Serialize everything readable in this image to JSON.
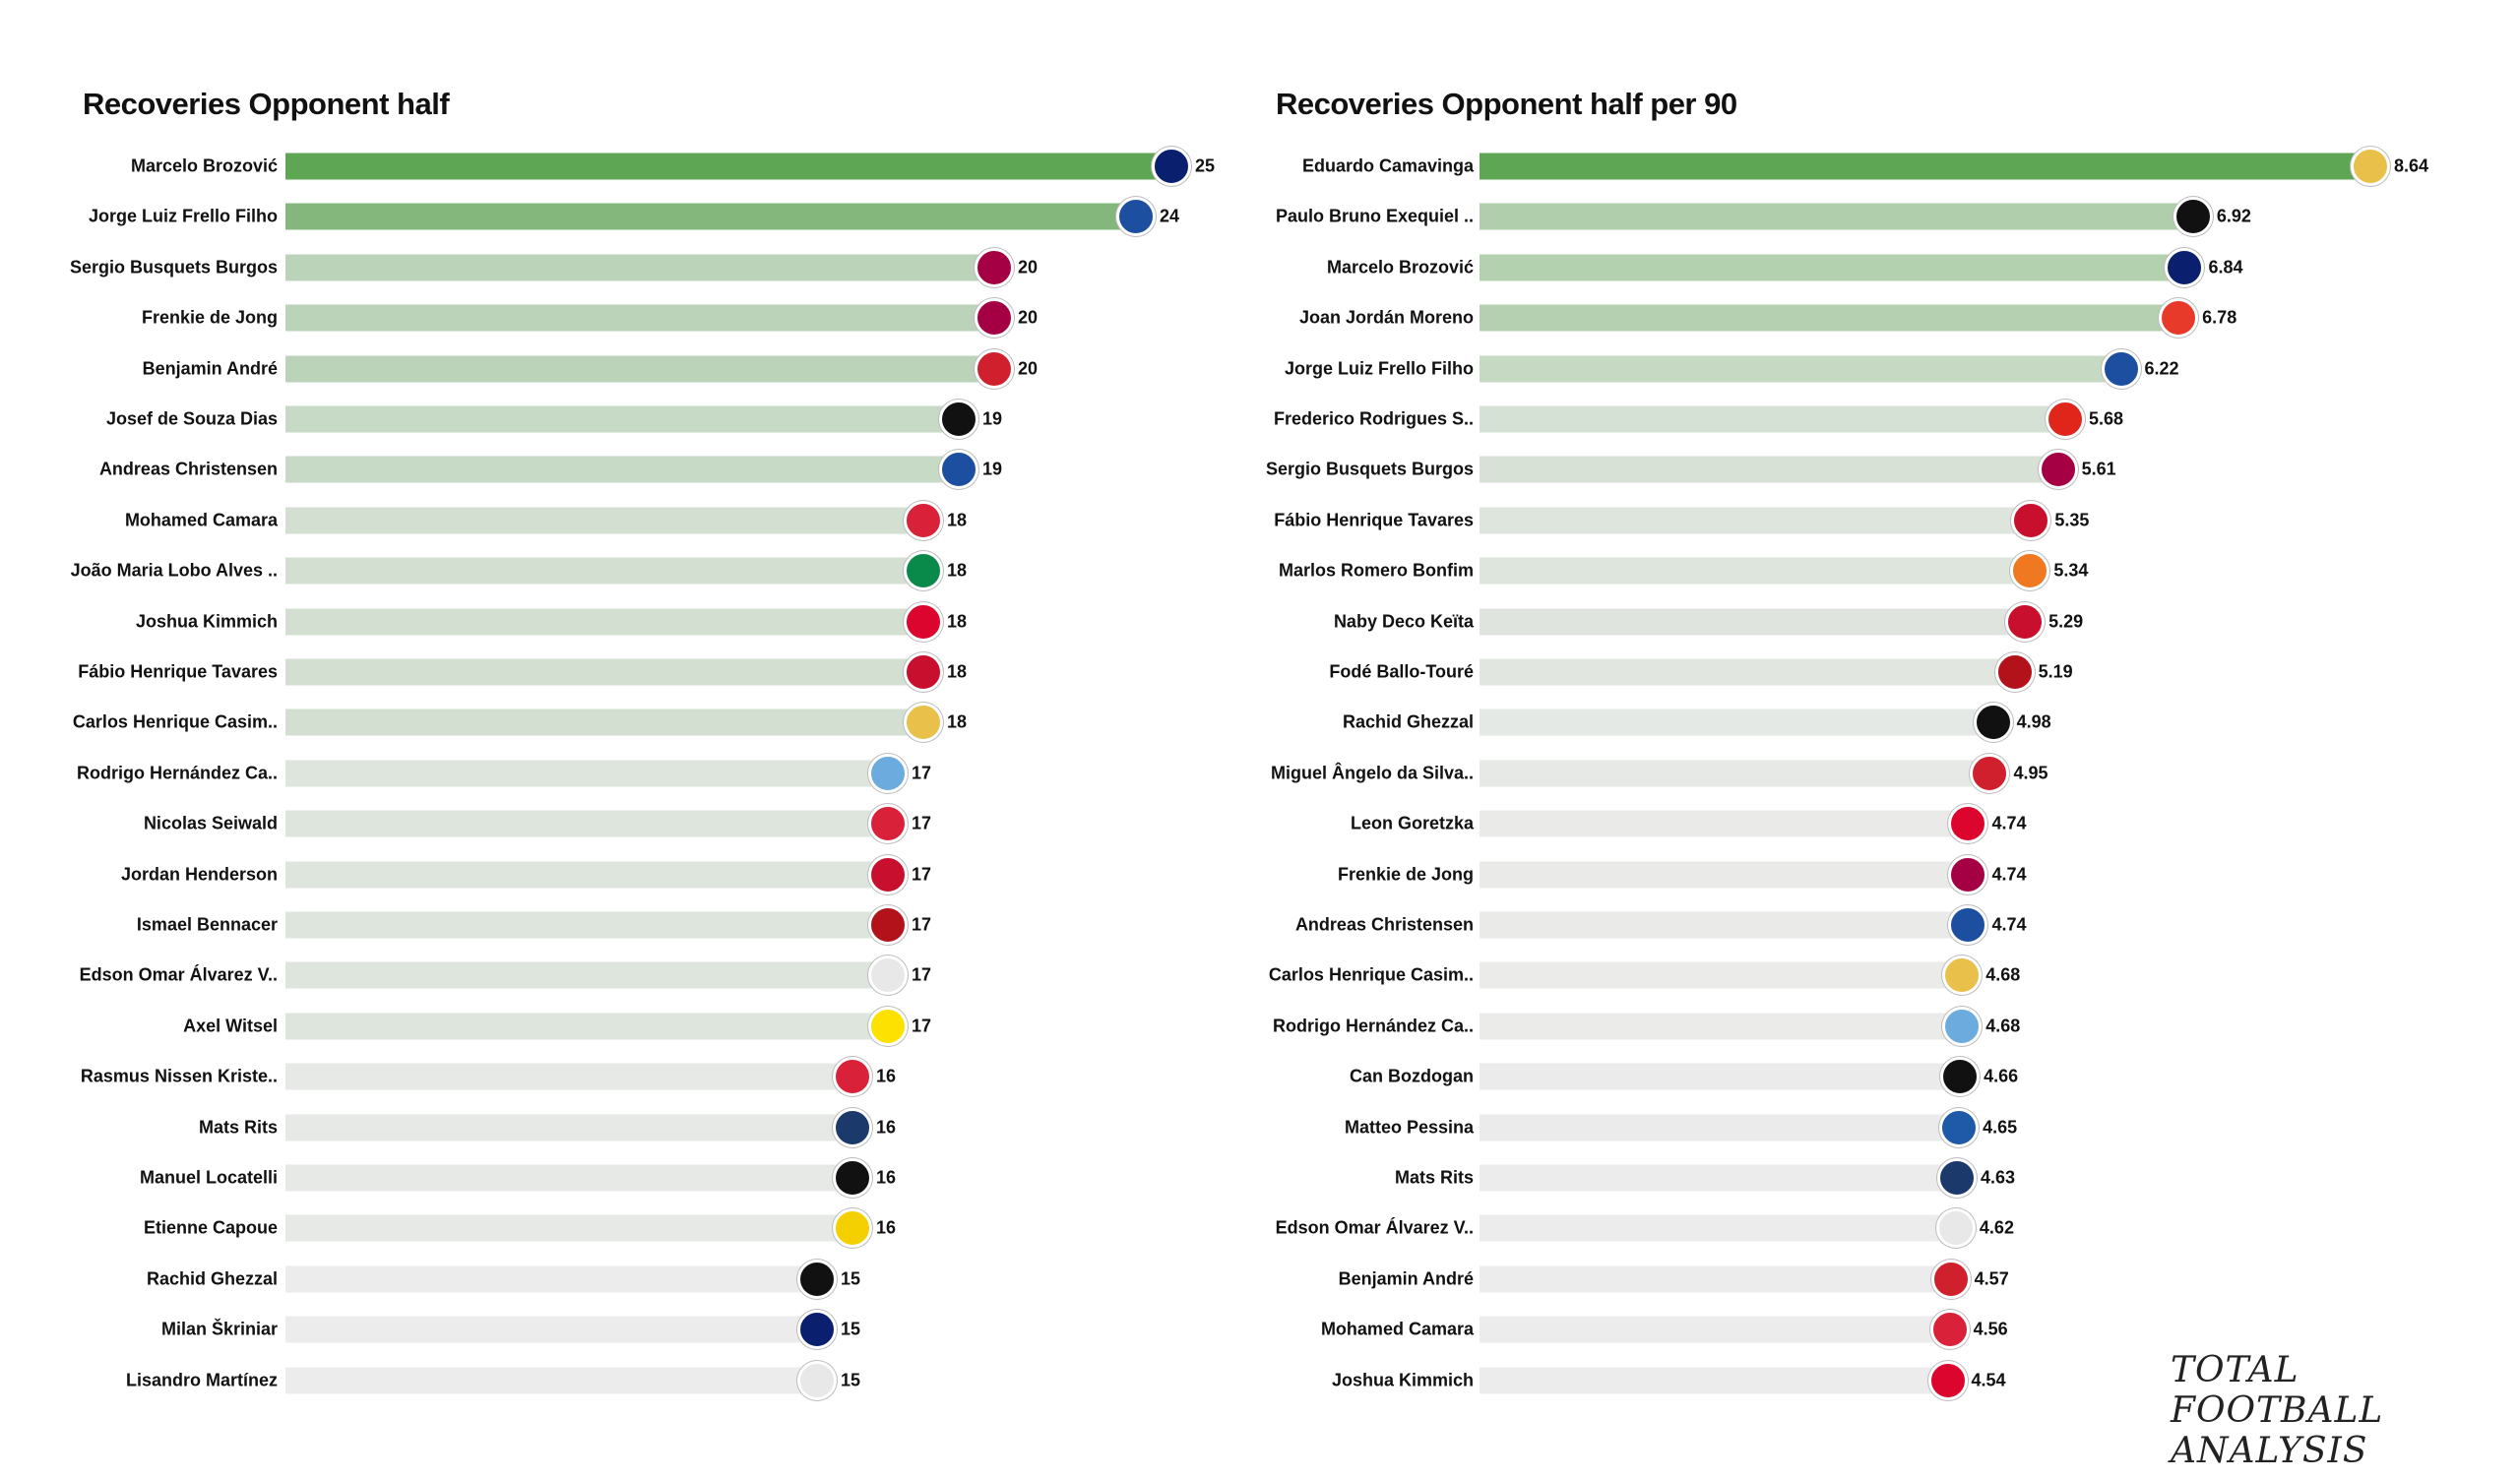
{
  "watermark": "Total Football Analysis",
  "colors": {
    "bar_max": "#5ea554",
    "bar_min": "#ececec"
  },
  "chart_data": [
    {
      "type": "bar",
      "orientation": "horizontal",
      "title": "Recoveries Opponent half",
      "xlim": [
        0,
        25
      ],
      "grid": false,
      "categories": [
        "Marcelo Brozović",
        "Jorge Luiz Frello Filho",
        "Sergio Busquets Burgos",
        "Frenkie de Jong",
        "Benjamin André",
        "Josef de Souza Dias",
        "Andreas Christensen",
        "Mohamed Camara",
        "João Maria Lobo Alves ..",
        "Joshua Kimmich",
        "Fábio Henrique Tavares",
        "Carlos Henrique Casim..",
        "Rodrigo Hernández Ca..",
        "Nicolas Seiwald",
        "Jordan Henderson",
        "Ismael Bennacer",
        "Edson Omar Álvarez V..",
        "Axel  Witsel",
        "Rasmus Nissen Kriste..",
        "Mats Rits",
        "Manuel Locatelli",
        "Etienne Capoue",
        "Rachid Ghezzal",
        "Milan Škriniar",
        "Lisandro Martínez"
      ],
      "values": [
        25,
        24,
        20,
        20,
        20,
        19,
        19,
        18,
        18,
        18,
        18,
        18,
        17,
        17,
        17,
        17,
        17,
        17,
        16,
        16,
        16,
        16,
        15,
        15,
        15
      ],
      "badges": [
        "inter",
        "chelsea",
        "barcelona",
        "barcelona",
        "lille",
        "besiktas",
        "chelsea",
        "salzburg",
        "sporting",
        "bayern",
        "liverpool",
        "real-madrid",
        "man-city",
        "salzburg",
        "liverpool",
        "milan",
        "ajax",
        "dortmund",
        "salzburg",
        "club-brugge",
        "juventus",
        "villarreal",
        "besiktas",
        "inter",
        "ajax"
      ]
    },
    {
      "type": "bar",
      "orientation": "horizontal",
      "title": "Recoveries Opponent half per 90",
      "xlim": [
        0,
        8.64
      ],
      "grid": false,
      "categories": [
        "Eduardo Camavinga",
        "Paulo Bruno Exequiel ..",
        "Marcelo Brozović",
        "Joan Jordán Moreno",
        "Jorge Luiz Frello Filho",
        "Frederico Rodrigues S..",
        "Sergio Busquets Burgos",
        "Fábio Henrique Tavares",
        "Marlos Romero Bonfim",
        "Naby Deco Keïta",
        "Fodé  Ballo-Touré",
        "Rachid Ghezzal",
        "Miguel Ângelo da Silva..",
        "Leon  Goretzka",
        "Frenkie de Jong",
        "Andreas Christensen",
        "Carlos Henrique Casim..",
        "Rodrigo Hernández Ca..",
        "Can Bozdogan",
        "Matteo Pessina",
        "Mats Rits",
        "Edson Omar Álvarez V..",
        "Benjamin André",
        "Mohamed Camara",
        "Joshua Kimmich"
      ],
      "values": [
        8.64,
        6.92,
        6.84,
        6.78,
        6.22,
        5.68,
        5.61,
        5.35,
        5.34,
        5.29,
        5.19,
        4.98,
        4.95,
        4.74,
        4.74,
        4.74,
        4.68,
        4.68,
        4.66,
        4.65,
        4.63,
        4.62,
        4.57,
        4.56,
        4.54
      ],
      "value_labels": [
        "8.64",
        "6.92",
        "6.84",
        "6.78",
        "6.22",
        "5.68",
        "5.61",
        "5.35",
        "5.34",
        "5.29",
        "5.19",
        "4.98",
        "4.95",
        "4.74",
        "4.74",
        "4.74",
        "4.68",
        "4.68",
        "4.66",
        "4.65",
        "4.63",
        "4.62",
        "4.57",
        "4.56",
        "4.54"
      ],
      "badges": [
        "real-madrid",
        "juventus",
        "inter",
        "sevilla",
        "chelsea",
        "man-utd",
        "barcelona",
        "liverpool",
        "shakhtar",
        "liverpool",
        "milan",
        "besiktas",
        "lille",
        "bayern",
        "barcelona",
        "chelsea",
        "real-madrid",
        "man-city",
        "besiktas",
        "atalanta",
        "club-brugge",
        "ajax",
        "lille",
        "salzburg",
        "bayern"
      ]
    }
  ],
  "badge_colors": {
    "inter": "#0a1f6e",
    "chelsea": "#1d4fa0",
    "barcelona": "#a50044",
    "lille": "#d0202e",
    "besiktas": "#111111",
    "salzburg": "#d9223a",
    "sporting": "#0a8a4a",
    "bayern": "#dc052d",
    "liverpool": "#c8102e",
    "real-madrid": "#e8c04a",
    "man-city": "#6cabdd",
    "milan": "#b3121a",
    "ajax": "#e8e8e8",
    "dortmund": "#fde100",
    "club-brugge": "#1b3a6b",
    "juventus": "#111111",
    "villarreal": "#f5d000",
    "sevilla": "#e83a2a",
    "man-utd": "#e0251b",
    "shakhtar": "#f07820",
    "atalanta": "#1e5aa8"
  }
}
